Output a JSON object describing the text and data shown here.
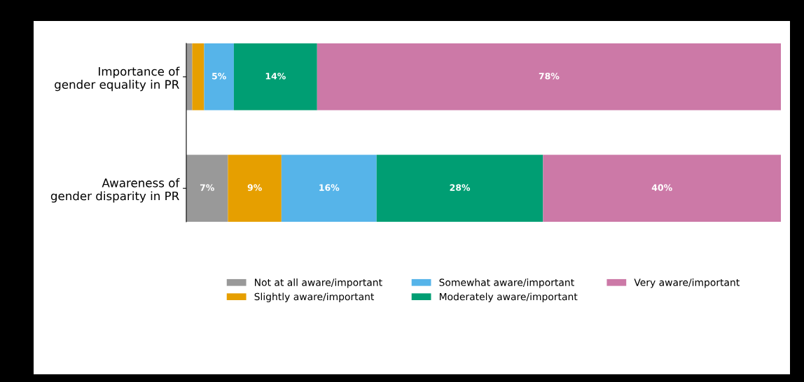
{
  "chart_data": {
    "type": "bar",
    "orientation": "horizontal",
    "stacked": true,
    "categories": [
      "Importance of\ngender equality in PR",
      "Awareness of\ngender disparity in PR"
    ],
    "series": [
      {
        "name": "Not at all aware/important",
        "color": "#999999",
        "values": [
          1,
          7
        ],
        "value_labels": [
          null,
          "7%"
        ]
      },
      {
        "name": "Slightly aware/important",
        "color": "#e69f00",
        "values": [
          2,
          9
        ],
        "value_labels": [
          null,
          "9%"
        ]
      },
      {
        "name": "Somewhat aware/important",
        "color": "#56b4e9",
        "values": [
          5,
          16
        ],
        "value_labels": [
          "5%",
          "16%"
        ]
      },
      {
        "name": "Moderately aware/important",
        "color": "#009e73",
        "values": [
          14,
          28
        ],
        "value_labels": [
          "14%",
          "28%"
        ]
      },
      {
        "name": "Very aware/important",
        "color": "#cc79a7",
        "values": [
          78,
          40
        ],
        "value_labels": [
          "78%",
          "40%"
        ]
      }
    ],
    "legend": "bottom",
    "grid": false,
    "tick_labels": "y"
  }
}
